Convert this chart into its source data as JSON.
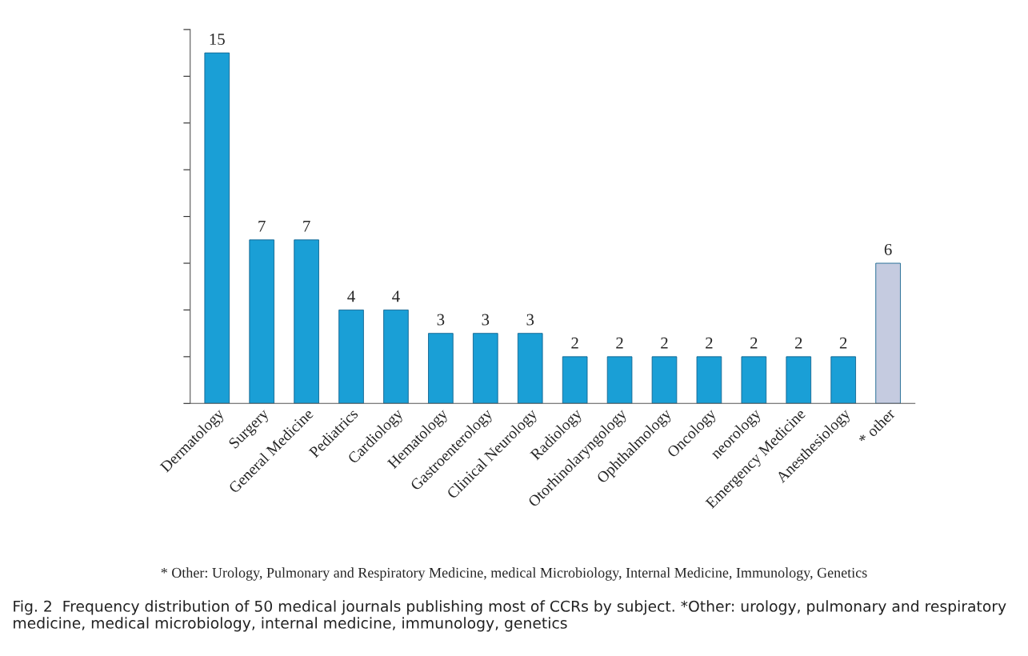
{
  "chart_data": {
    "type": "bar",
    "categories": [
      "Dermatology",
      "Surgery",
      "General Medicine",
      "Pediatrics",
      "Cardiology",
      "Hematology",
      "Gastroenterology",
      "Clinical Neurology",
      "Radiology",
      "Otorhinolaryngology",
      "Ophthalmology",
      "Oncology",
      "neorology",
      "Emergency Medicine",
      "Anesthesiology",
      "* other"
    ],
    "values": [
      15,
      7,
      7,
      4,
      4,
      3,
      3,
      3,
      2,
      2,
      2,
      2,
      2,
      2,
      2,
      6
    ],
    "colors": [
      "#1a9fd6",
      "#1a9fd6",
      "#1a9fd6",
      "#1a9fd6",
      "#1a9fd6",
      "#1a9fd6",
      "#1a9fd6",
      "#1a9fd6",
      "#1a9fd6",
      "#1a9fd6",
      "#1a9fd6",
      "#1a9fd6",
      "#1a9fd6",
      "#1a9fd6",
      "#1a9fd6",
      "#c5cbe0"
    ],
    "ylim": [
      0,
      16
    ],
    "yticks": [
      {
        "value": 0,
        "label": null
      },
      {
        "value": 2,
        "label": null
      },
      {
        "value": 4,
        "label": null
      },
      {
        "value": 6,
        "label": null
      },
      {
        "value": 8,
        "label": null
      },
      {
        "value": 10,
        "label": null
      },
      {
        "value": 12,
        "label": null
      },
      {
        "value": 14,
        "label": null
      },
      {
        "value": 16,
        "label": null
      }
    ],
    "tick_labels": "x",
    "data_labels": true,
    "grid": false,
    "legend": false,
    "annotations": [
      "* Other: Urology, Pulmonary and Respiratory Medicine, medical Microbiology, Internal Medicine, Immunology, Genetics",
      "Fig. 2  Frequency distribution of 50 medical journals publishing most of CCRs by subject. *Other: urology, pulmonary and respiratory medicine, medical microbiology, internal medicine, immunology, genetics"
    ]
  }
}
